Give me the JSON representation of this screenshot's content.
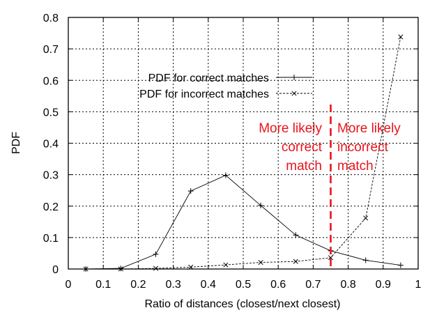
{
  "chart_data": {
    "type": "line",
    "xlabel": "Ratio of distances (closest/next closest)",
    "ylabel": "PDF",
    "xlim": [
      0,
      1
    ],
    "ylim": [
      0,
      0.8
    ],
    "x_ticks": [
      "0",
      "0.1",
      "0.2",
      "0.3",
      "0.4",
      "0.5",
      "0.6",
      "0.7",
      "0.8",
      "0.9",
      "1"
    ],
    "y_ticks": [
      "0",
      "0.1",
      "0.2",
      "0.3",
      "0.4",
      "0.5",
      "0.6",
      "0.7",
      "0.8"
    ],
    "grid": true,
    "legend_position": "top-left",
    "series": [
      {
        "name": "PDF for correct matches",
        "marker": "plus",
        "line_style": "solid",
        "x": [
          0.05,
          0.15,
          0.25,
          0.35,
          0.45,
          0.55,
          0.65,
          0.75,
          0.85,
          0.95
        ],
        "y": [
          0.0,
          0.002,
          0.047,
          0.248,
          0.298,
          0.202,
          0.108,
          0.058,
          0.028,
          0.012
        ]
      },
      {
        "name": "PDF for incorrect matches",
        "marker": "cross",
        "line_style": "dashed",
        "x": [
          0.05,
          0.15,
          0.25,
          0.35,
          0.45,
          0.55,
          0.65,
          0.75,
          0.85,
          0.95
        ],
        "y": [
          0.0,
          0.0,
          0.002,
          0.006,
          0.013,
          0.021,
          0.024,
          0.036,
          0.162,
          0.738
        ]
      }
    ],
    "annotations": {
      "threshold_x": 0.75,
      "threshold_color": "#e8141c",
      "left_text": [
        "More likely",
        "correct",
        "match"
      ],
      "right_text": [
        "More likely",
        "incorrect",
        "match"
      ]
    }
  }
}
